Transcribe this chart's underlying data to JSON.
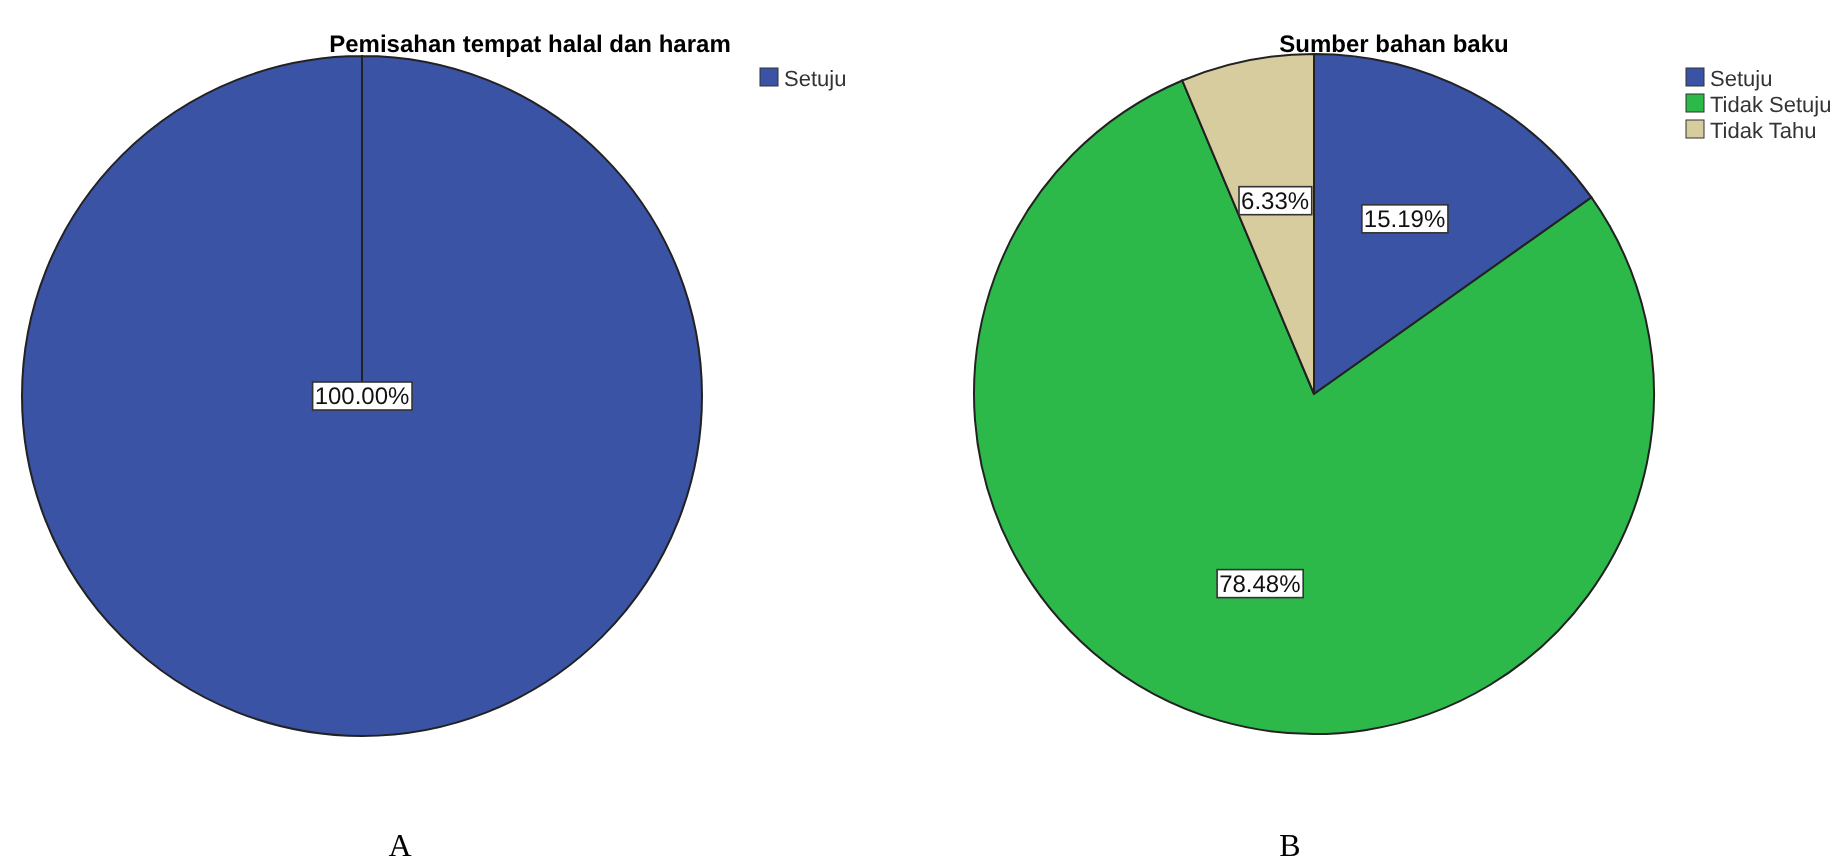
{
  "chart_data": [
    {
      "type": "pie",
      "title": "Pemisahan tempat halal dan haram",
      "categories": [
        "Setuju"
      ],
      "values": [
        100
      ],
      "colors": [
        "#3a53a4"
      ],
      "value_labels": [
        "100.00%"
      ],
      "legend": "top right",
      "annotations": [
        "A"
      ]
    },
    {
      "type": "pie",
      "title": "Sumber bahan baku",
      "categories": [
        "Setuju",
        "Tidak Setuju",
        "Tidak Tahu"
      ],
      "values": [
        15.19,
        78.48,
        6.33
      ],
      "colors": [
        "#3a53a4",
        "#2db84a",
        "#d6cc9e"
      ],
      "value_labels": [
        "15.19%",
        "78.48%",
        "6.33%"
      ],
      "legend": "top right",
      "annotations": [
        "B"
      ]
    }
  ]
}
